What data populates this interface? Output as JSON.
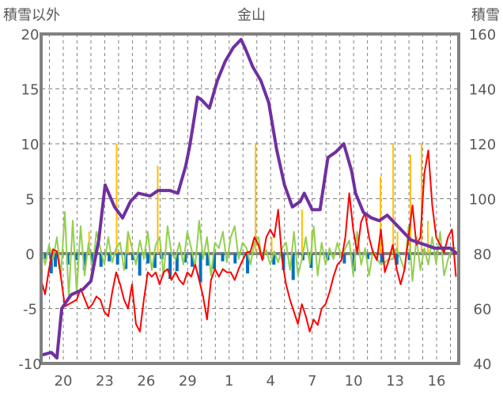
{
  "chart_data": {
    "type": "line",
    "title": "金山",
    "ylabel_left": "積雪以外",
    "ylabel_right": "積雪",
    "ylim_left": [
      -10,
      20
    ],
    "yticks_left": [
      "-10",
      "-5",
      "0",
      "5",
      "10",
      "15",
      "20"
    ],
    "ylim_right": [
      40,
      160
    ],
    "yticks_right": [
      "40",
      "60",
      "80",
      "100",
      "120",
      "140",
      "160"
    ],
    "x_unit": "days from the 20th",
    "xlim": [
      -1.6,
      28.6
    ],
    "xticks": [
      {
        "day": 0,
        "label": "20"
      },
      {
        "day": 3,
        "label": "23"
      },
      {
        "day": 6,
        "label": "26"
      },
      {
        "day": 9,
        "label": "29"
      },
      {
        "day": 12,
        "label": "1"
      },
      {
        "day": 15,
        "label": "4"
      },
      {
        "day": 18,
        "label": "7"
      },
      {
        "day": 21,
        "label": "10"
      },
      {
        "day": 24,
        "label": "13"
      },
      {
        "day": 27,
        "label": "16"
      }
    ],
    "grid": true,
    "colors": {
      "temperature": "#ff0000",
      "green": "#92d050",
      "snow_depth": "#7030a0",
      "orange": "#ffc000",
      "blue": "#0070c0",
      "frame": "#808080"
    },
    "series": [
      {
        "name": "temperature",
        "axis": "left",
        "x_range": [
          -1.6,
          28.4
        ],
        "values": [
          -2.4,
          -3.7,
          -1.4,
          0.4,
          0.2,
          -2.1,
          -4.8,
          -4.6,
          -4.4,
          -4.2,
          -3.2,
          -4.1,
          -5,
          -4.6,
          -3.9,
          -4.2,
          -5.3,
          -5.7,
          -3.5,
          -1.7,
          -2.8,
          -4.2,
          -5,
          -2.8,
          -6.4,
          -7.1,
          -4.2,
          -1.7,
          -2.1,
          -1.7,
          -2.8,
          -1.7,
          -1.4,
          -2.4,
          -1.7,
          -2.4,
          -2.8,
          -1.7,
          -2.1,
          -1,
          -2.4,
          -3.9,
          -6,
          -2.4,
          -1.4,
          -2.1,
          -1.4,
          -1.7,
          -1.7,
          -2.4,
          -1.4,
          -0.6,
          0.1,
          0.2,
          1.5,
          0.8,
          -0.6,
          1.5,
          2.2,
          1.5,
          4,
          -0.6,
          -2.8,
          -4.2,
          -5.3,
          -6.4,
          -4.6,
          -5.7,
          -7.1,
          -6,
          -6.5,
          -5,
          -4.6,
          -3.5,
          -2.1,
          -1,
          -0.6,
          1.5,
          5.5,
          2.2,
          0.1,
          2.9,
          3.7,
          1.5,
          0.1,
          -0.6,
          2.2,
          -1.7,
          -0.6,
          0.8,
          -1.4,
          -2.8,
          -1.4,
          1.5,
          4.4,
          0.8,
          1.5,
          7.3,
          9.4,
          4.4,
          1.5,
          0.8,
          0.1,
          1.5,
          2.2,
          -2.1
        ]
      },
      {
        "name": "green",
        "axis": "left",
        "x_range": [
          -1.6,
          28.4
        ],
        "values": [
          0.5,
          -1,
          0.8,
          -0.5,
          1.5,
          -2,
          3.8,
          -4,
          3,
          -3.5,
          2.5,
          -2,
          1,
          -1.5,
          2,
          0.5,
          -1,
          1.5,
          -0.8,
          0.5,
          1,
          -1.5,
          2,
          0.5,
          -1,
          1.2,
          -0.5,
          2,
          -1.5,
          0.8,
          1.5,
          -2,
          2.5,
          0,
          -0.5,
          1,
          -1,
          2,
          0.5,
          -1.2,
          3,
          -0.5,
          1.5,
          -2,
          1,
          0.5,
          2,
          -0.8,
          1.5,
          2.5,
          -0.5,
          1,
          0.5,
          -1,
          1,
          1.5,
          -0.5,
          0.3,
          -1,
          0.2,
          -0.8,
          0.5,
          1,
          -1.5,
          2,
          -2,
          -0.5,
          1.5,
          -1,
          2.5,
          -2,
          1,
          -1,
          0.5,
          -0.5,
          1,
          -0.3,
          0.5,
          1.2,
          -2,
          2,
          -1,
          0.5,
          -2,
          0.3,
          -0.5,
          -1,
          -0.8,
          -0.5,
          -0.5,
          0.5,
          -0.5,
          -1.5,
          2.5,
          -2.5,
          1.5,
          -1.5,
          0.5,
          -1,
          1.5,
          -1,
          2,
          -2,
          -0.5,
          0.5,
          0.5
        ]
      },
      {
        "name": "snow_depth",
        "axis": "right",
        "points": [
          [
            -1.6,
            43
          ],
          [
            -0.86,
            44
          ],
          [
            -0.46,
            42
          ],
          [
            -0.11,
            60
          ],
          [
            0.57,
            65
          ],
          [
            1.43,
            67
          ],
          [
            2,
            70
          ],
          [
            2.57,
            85
          ],
          [
            3.03,
            105
          ],
          [
            3.71,
            97
          ],
          [
            4.29,
            93
          ],
          [
            4.86,
            99
          ],
          [
            5.43,
            102
          ],
          [
            6.29,
            101
          ],
          [
            6.86,
            103
          ],
          [
            7.71,
            103
          ],
          [
            8.29,
            102
          ],
          [
            8.86,
            112
          ],
          [
            9.14,
            119
          ],
          [
            9.43,
            128
          ],
          [
            9.71,
            137
          ],
          [
            10,
            136
          ],
          [
            10.57,
            133
          ],
          [
            11.14,
            143
          ],
          [
            11.71,
            150
          ],
          [
            12.29,
            155
          ],
          [
            12.86,
            158
          ],
          [
            13.14,
            155
          ],
          [
            13.71,
            148
          ],
          [
            14.29,
            143
          ],
          [
            14.86,
            135
          ],
          [
            15.43,
            118
          ],
          [
            16,
            105
          ],
          [
            16.57,
            97
          ],
          [
            17.14,
            99
          ],
          [
            17.43,
            102
          ],
          [
            18,
            96
          ],
          [
            18.57,
            96
          ],
          [
            19.14,
            115
          ],
          [
            19.71,
            117
          ],
          [
            20.29,
            120
          ],
          [
            20.86,
            110
          ],
          [
            21.14,
            102
          ],
          [
            21.71,
            95
          ],
          [
            22.29,
            93
          ],
          [
            22.86,
            92
          ],
          [
            23.43,
            94
          ],
          [
            24,
            91
          ],
          [
            24.57,
            88
          ],
          [
            25.14,
            85
          ],
          [
            25.71,
            84
          ],
          [
            26.29,
            83
          ],
          [
            26.86,
            82
          ],
          [
            28,
            82
          ],
          [
            28.46,
            80
          ]
        ]
      },
      {
        "name": "orange",
        "axis": "left",
        "kind": "bar",
        "points": [
          [
            1.9,
            2
          ],
          [
            3.89,
            10
          ],
          [
            4.7,
            1.5
          ],
          [
            6.86,
            8
          ],
          [
            13.94,
            10
          ],
          [
            15.1,
            1.5
          ],
          [
            17.3,
            4
          ],
          [
            18,
            2
          ],
          [
            22.97,
            7
          ],
          [
            23.89,
            10
          ],
          [
            24.2,
            2
          ],
          [
            25.14,
            9
          ],
          [
            25.94,
            10
          ],
          [
            26.4,
            3
          ]
        ]
      },
      {
        "name": "blue",
        "axis": "left",
        "kind": "bar",
        "points": [
          [
            -1.3,
            -0.5
          ],
          [
            -0.9,
            -1.8
          ],
          [
            -0.6,
            -1.2
          ],
          [
            0.3,
            -1
          ],
          [
            0.9,
            -0.6
          ],
          [
            1.5,
            -1.5
          ],
          [
            2.1,
            -0.8
          ],
          [
            2.7,
            -1.2
          ],
          [
            3.3,
            -0.7
          ],
          [
            3.9,
            -1
          ],
          [
            4.5,
            -1.4
          ],
          [
            5,
            -0.6
          ],
          [
            5.5,
            -2
          ],
          [
            6.1,
            -0.9
          ],
          [
            6.6,
            -1.3
          ],
          [
            7.1,
            -0.5
          ],
          [
            7.7,
            -2.3
          ],
          [
            8.2,
            -1.6
          ],
          [
            8.8,
            -0.8
          ],
          [
            9.3,
            -1.2
          ],
          [
            9.9,
            -2.6
          ],
          [
            10.4,
            -1.1
          ],
          [
            10.9,
            -1.4
          ],
          [
            11.5,
            -0.7
          ],
          [
            12.4,
            -0.9
          ],
          [
            13.3,
            -1.8
          ],
          [
            14.4,
            -0.5
          ],
          [
            15.2,
            -1
          ],
          [
            15.9,
            -1.5
          ],
          [
            16.6,
            -2.4
          ],
          [
            17.3,
            -0.6
          ],
          [
            17.9,
            -1.3
          ],
          [
            19.1,
            -0.6
          ],
          [
            20.3,
            -0.9
          ],
          [
            21,
            -1.6
          ],
          [
            22,
            -0.5
          ],
          [
            23,
            -0.8
          ],
          [
            24.1,
            -1
          ],
          [
            25,
            -0.6
          ]
        ]
      }
    ]
  }
}
